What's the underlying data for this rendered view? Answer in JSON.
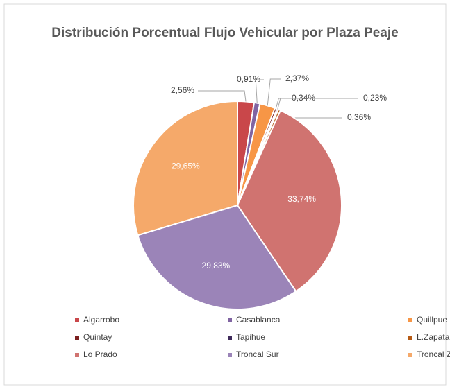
{
  "chart_data": {
    "type": "pie",
    "title": "Distribución Porcentual Flujo Vehicular por Plaza Peaje",
    "categories": [
      "Algarrobo",
      "Casablanca",
      "Quillpue",
      "Quintay",
      "Tapihue",
      "L.Zapata",
      "Lo Prado",
      "Troncal Sur",
      "Troncal Zapata"
    ],
    "values": [
      2.56,
      0.91,
      2.37,
      0.34,
      0.23,
      0.36,
      33.74,
      29.83,
      29.65
    ],
    "value_labels": [
      "2,56%",
      "0,91%",
      "2,37%",
      "0,34%",
      "0,23%",
      "0,36%",
      "33,74%",
      "29,83%",
      "29,65%"
    ],
    "colors": [
      "#c9474a",
      "#8064a2",
      "#f79646",
      "#7b1f1f",
      "#3f2a5a",
      "#b65a14",
      "#d07370",
      "#9b84b8",
      "#f5a96a"
    ],
    "legend": "bottom"
  }
}
